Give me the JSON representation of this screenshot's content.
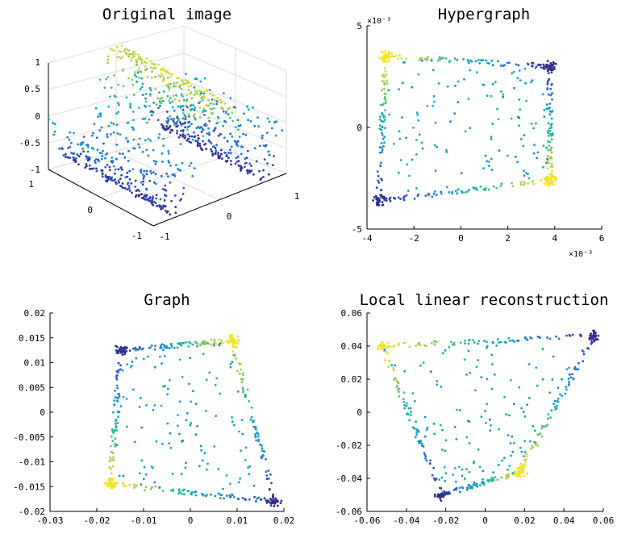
{
  "chart_data": [
    {
      "id": "original",
      "type": "scatter3d",
      "title": "Original image",
      "z_ticks": [
        "1",
        "0.5",
        "0",
        "-0.5",
        "-1"
      ],
      "y_ticks": [
        "1",
        "0",
        "-1"
      ],
      "x_ticks": [
        "-1",
        "0",
        "1"
      ],
      "x_range": [
        -1,
        1
      ],
      "y_range": [
        -1,
        1
      ],
      "z_range": [
        -1,
        1
      ]
    },
    {
      "id": "hypergraph",
      "type": "scatter",
      "title": "Hypergraph",
      "xlim": [
        -4,
        6
      ],
      "ylim": [
        -5,
        5
      ],
      "x_ticks": [
        "-4",
        "-2",
        "0",
        "2",
        "4",
        "6"
      ],
      "y_ticks": [
        "5",
        "0",
        "-5"
      ],
      "x_exponent": "×10⁻³",
      "y_exponent": "×10⁻³",
      "corners": [
        {
          "x": -3.2,
          "y": 3.5,
          "color": 1.0
        },
        {
          "x": 3.8,
          "y": 3.0,
          "color": 0.0
        },
        {
          "x": 3.8,
          "y": -2.6,
          "color": 1.0
        },
        {
          "x": -3.5,
          "y": -3.6,
          "color": 0.0
        }
      ]
    },
    {
      "id": "graph",
      "type": "scatter",
      "title": "Graph",
      "xlim": [
        -0.03,
        0.02
      ],
      "ylim": [
        -0.02,
        0.02
      ],
      "x_ticks": [
        "-0.03",
        "-0.02",
        "-0.01",
        "0",
        "0.01",
        "0.02"
      ],
      "y_ticks": [
        "0.02",
        "0.015",
        "0.01",
        "0.005",
        "0",
        "-0.005",
        "-0.01",
        "-0.015",
        "-0.02"
      ],
      "corners": [
        {
          "x": -0.015,
          "y": 0.0125,
          "color": 0.0
        },
        {
          "x": 0.009,
          "y": 0.0145,
          "color": 1.0
        },
        {
          "x": 0.018,
          "y": -0.018,
          "color": 0.0
        },
        {
          "x": -0.017,
          "y": -0.0145,
          "color": 1.0
        }
      ]
    },
    {
      "id": "local_linear",
      "type": "scatter",
      "title": "Local linear reconstruction",
      "xlim": [
        -0.06,
        0.06
      ],
      "ylim": [
        -0.06,
        0.06
      ],
      "x_ticks": [
        "-0.06",
        "-0.04",
        "-0.02",
        "0",
        "0.02",
        "0.04",
        "0.06"
      ],
      "y_ticks": [
        "0.06",
        "0.04",
        "0.02",
        "0",
        "-0.02",
        "-0.04",
        "-0.06"
      ],
      "corners": [
        {
          "x": -0.052,
          "y": 0.04,
          "color": 1.0
        },
        {
          "x": 0.055,
          "y": 0.046,
          "color": 0.0
        },
        {
          "x": 0.018,
          "y": -0.036,
          "color": 1.0
        },
        {
          "x": -0.022,
          "y": -0.05,
          "color": 0.0
        }
      ]
    }
  ]
}
